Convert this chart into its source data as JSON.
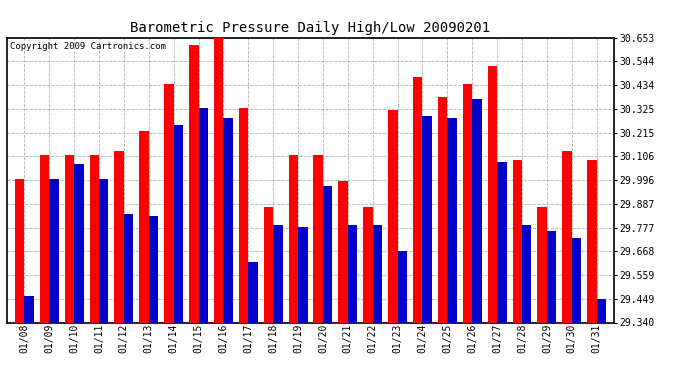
{
  "title": "Barometric Pressure Daily High/Low 20090201",
  "copyright": "Copyright 2009 Cartronics.com",
  "background_color": "#ffffff",
  "plot_bg_color": "#ffffff",
  "grid_color": "#aaaaaa",
  "ylim": [
    29.34,
    30.653
  ],
  "yticks": [
    29.34,
    29.449,
    29.559,
    29.668,
    29.777,
    29.887,
    29.996,
    30.106,
    30.215,
    30.325,
    30.434,
    30.544,
    30.653
  ],
  "dates": [
    "01/08",
    "01/09",
    "01/10",
    "01/11",
    "01/12",
    "01/13",
    "01/14",
    "01/15",
    "01/16",
    "01/17",
    "01/18",
    "01/19",
    "01/20",
    "01/21",
    "01/22",
    "01/23",
    "01/24",
    "01/25",
    "01/26",
    "01/27",
    "01/28",
    "01/29",
    "01/30",
    "01/31"
  ],
  "high": [
    30.0,
    30.11,
    30.11,
    30.11,
    30.13,
    30.22,
    30.44,
    30.62,
    30.65,
    30.33,
    29.87,
    30.11,
    30.11,
    29.99,
    29.87,
    30.32,
    30.47,
    30.38,
    30.44,
    30.52,
    30.09,
    29.87,
    30.13,
    30.09
  ],
  "low": [
    29.46,
    30.0,
    30.07,
    30.0,
    29.84,
    29.83,
    30.25,
    30.33,
    30.28,
    29.62,
    29.79,
    29.78,
    29.97,
    29.79,
    29.79,
    29.67,
    30.29,
    30.28,
    30.37,
    30.08,
    29.79,
    29.76,
    29.73,
    29.45
  ],
  "high_color": "#ff0000",
  "low_color": "#0000cc",
  "bar_width": 0.38,
  "figsize": [
    6.9,
    3.75
  ],
  "dpi": 100,
  "title_fontsize": 10,
  "tick_fontsize": 7
}
